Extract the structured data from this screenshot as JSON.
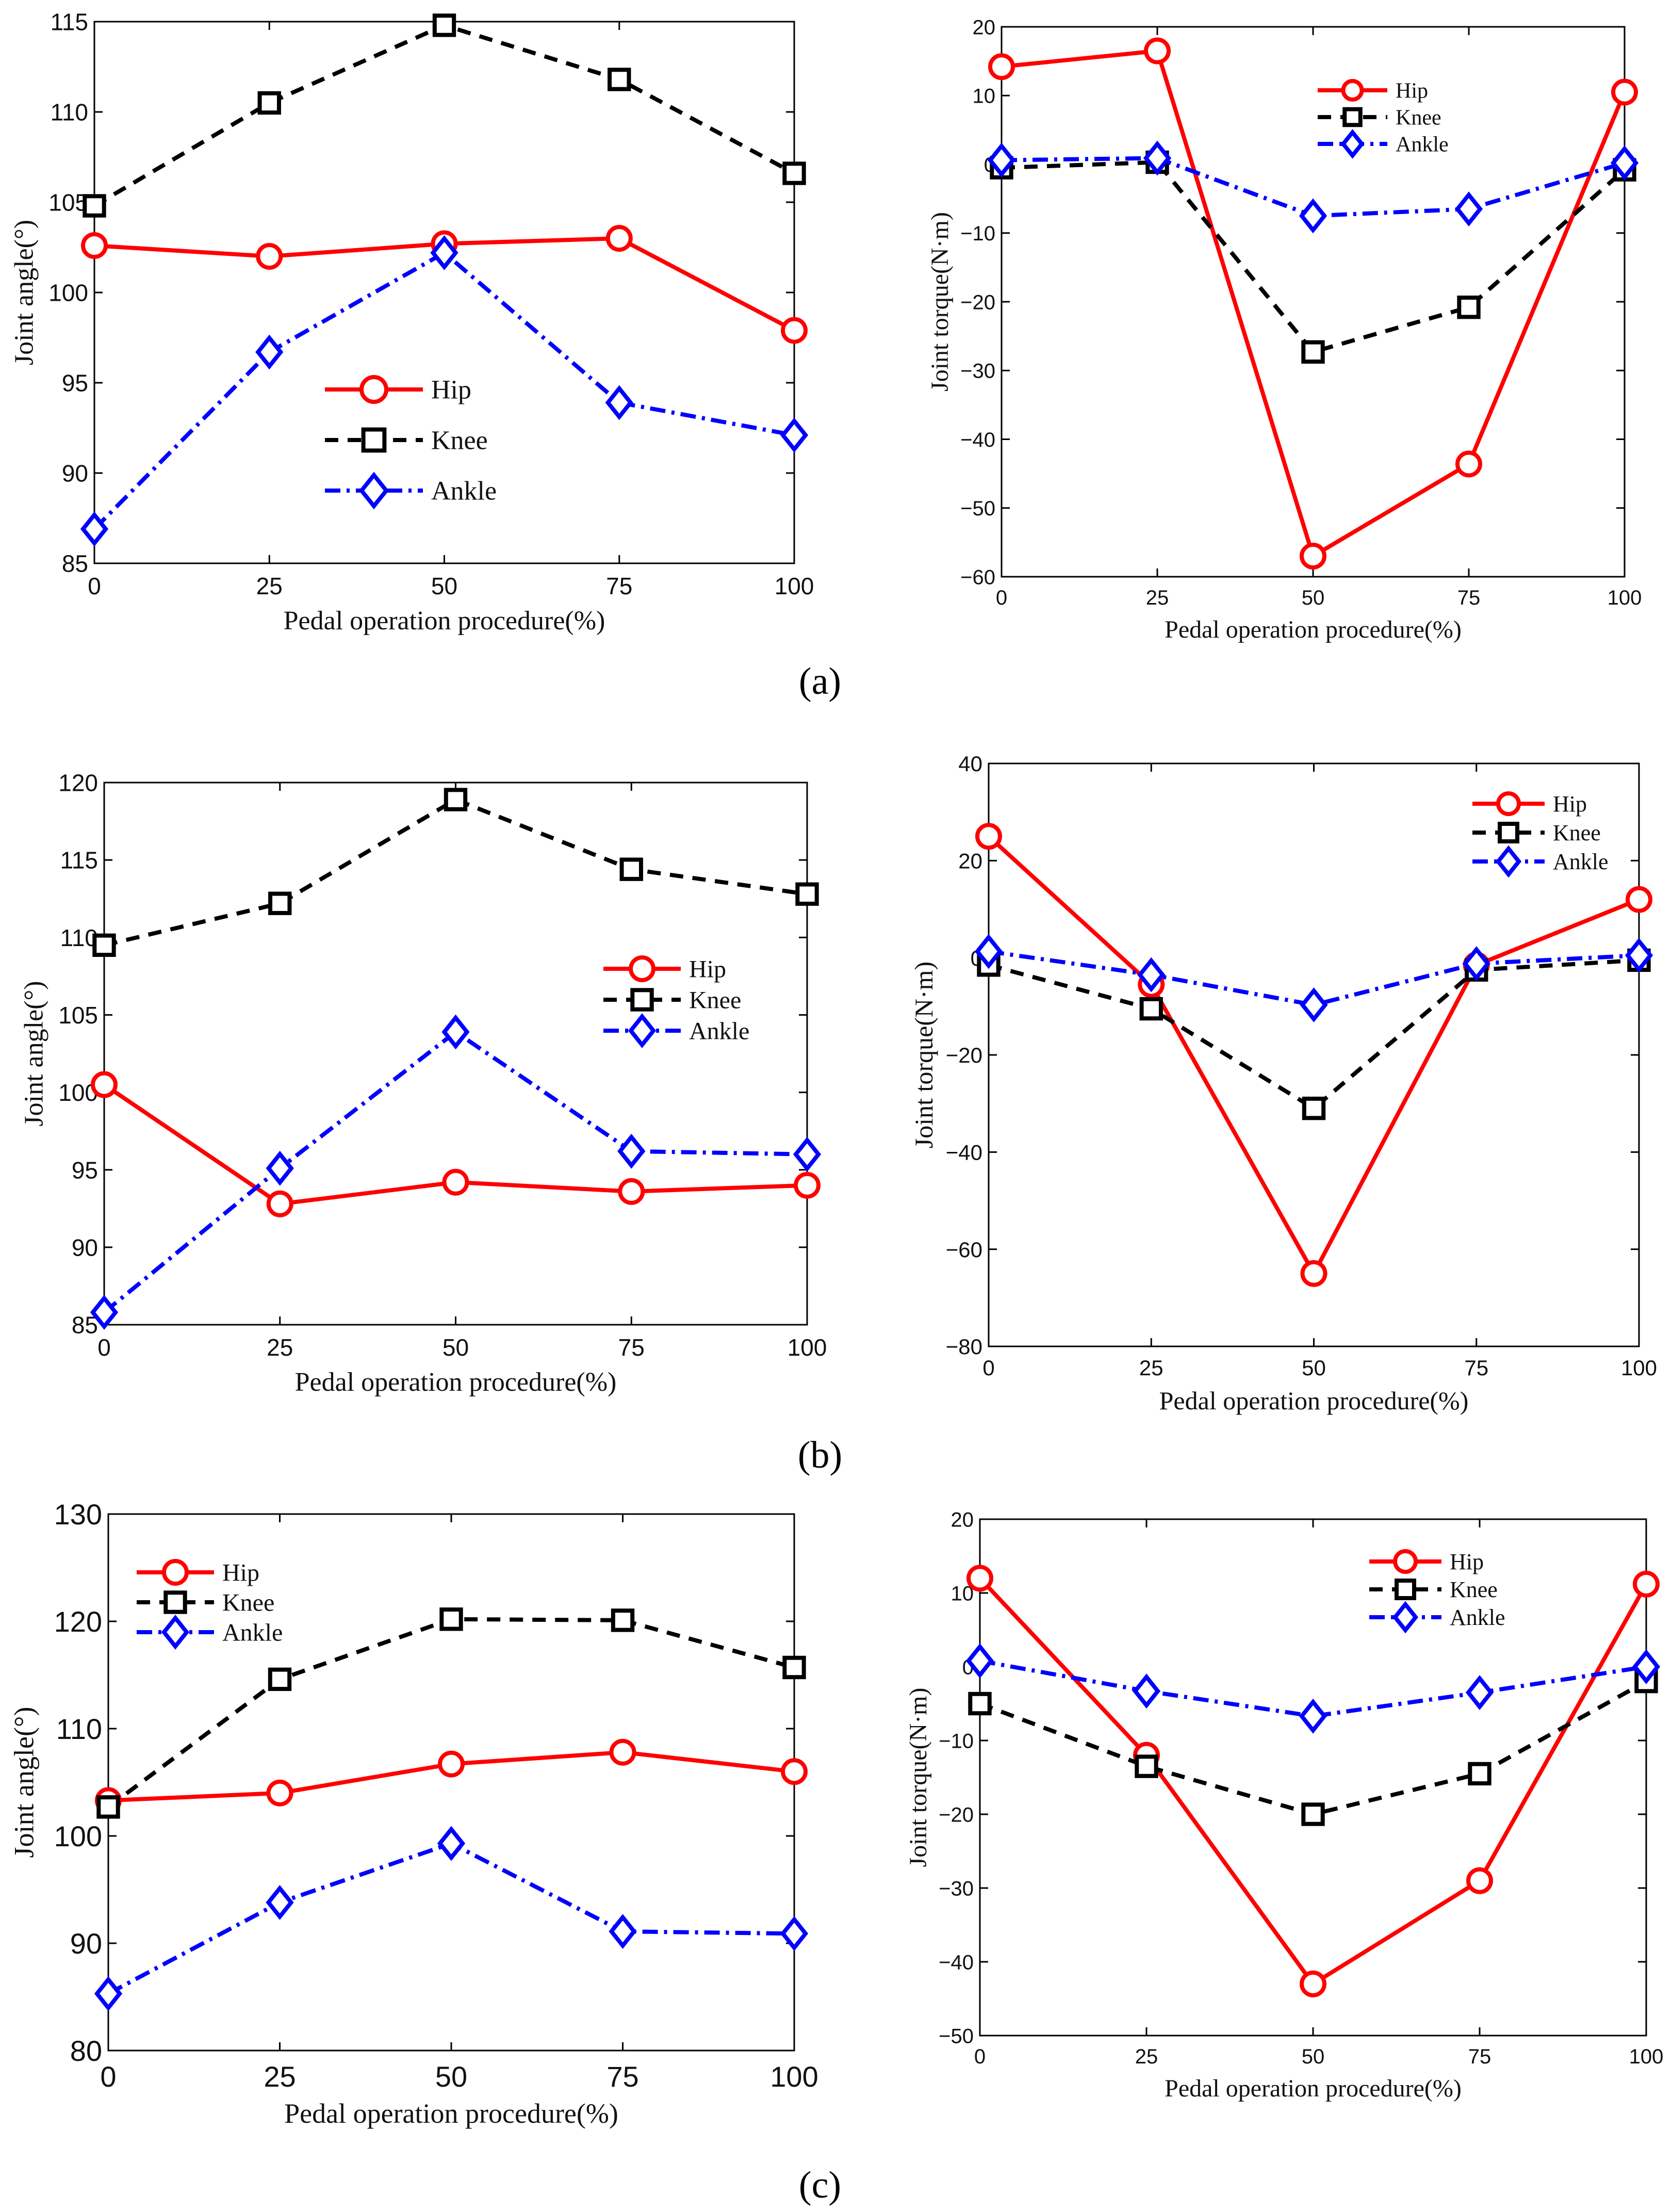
{
  "styles": {
    "hip": {
      "color": "#ff0000",
      "marker": "circle",
      "dash": ""
    },
    "knee": {
      "color": "#000000",
      "marker": "square",
      "dash": "26,18"
    },
    "ankle": {
      "color": "#0000ff",
      "marker": "diamond",
      "dash": "30,12,6,12"
    }
  },
  "captions": {
    "a": "(a)",
    "b": "(b)",
    "c": "(c)"
  },
  "chart_data": [
    {
      "id": "a-angle",
      "row": 0,
      "col": 0,
      "type": "line",
      "x": [
        0,
        25,
        50,
        75,
        100
      ],
      "xlim": [
        0,
        100
      ],
      "xticks": [
        "0",
        "25",
        "50",
        "75",
        "100"
      ],
      "ylim": [
        85,
        115
      ],
      "yticks": [
        "85",
        "90",
        "95",
        "100",
        "105",
        "110",
        "115"
      ],
      "xlabel": "Pedal operation procedure(%)",
      "ylabel": "Joint angle(°)",
      "legend_position": "center",
      "series": [
        {
          "name": "Hip",
          "key": "hip",
          "values": [
            102.6,
            102.0,
            102.7,
            103.0,
            97.9
          ]
        },
        {
          "name": "Knee",
          "key": "knee",
          "values": [
            104.8,
            110.5,
            114.8,
            111.8,
            106.6
          ]
        },
        {
          "name": "Ankle",
          "key": "ankle",
          "values": [
            86.9,
            96.7,
            102.2,
            93.9,
            92.1
          ]
        }
      ]
    },
    {
      "id": "a-torque",
      "row": 0,
      "col": 1,
      "type": "line",
      "x": [
        0,
        25,
        50,
        75,
        100
      ],
      "xlim": [
        0,
        100
      ],
      "xticks": [
        "0",
        "25",
        "50",
        "75",
        "100"
      ],
      "ylim": [
        -60,
        20
      ],
      "yticks": [
        "−60",
        "−50",
        "−40",
        "−30",
        "−20",
        "−10",
        "0",
        "10",
        "20"
      ],
      "xlabel": "Pedal operation procedure(%)",
      "ylabel": "Joint torque(N·m)",
      "legend_position": "top-right",
      "series": [
        {
          "name": "Hip",
          "key": "hip",
          "values": [
            14.2,
            16.5,
            -57.0,
            -43.6,
            10.5
          ]
        },
        {
          "name": "Knee",
          "key": "knee",
          "values": [
            -0.5,
            0.3,
            -27.3,
            -20.8,
            -0.8
          ]
        },
        {
          "name": "Ankle",
          "key": "ankle",
          "values": [
            0.6,
            0.9,
            -7.5,
            -6.5,
            0.2
          ]
        }
      ]
    },
    {
      "id": "b-angle",
      "row": 1,
      "col": 0,
      "type": "line",
      "x": [
        0,
        25,
        50,
        75,
        100
      ],
      "xlim": [
        0,
        100
      ],
      "xticks": [
        "0",
        "25",
        "50",
        "75",
        "100"
      ],
      "ylim": [
        85,
        120
      ],
      "yticks": [
        "85",
        "90",
        "95",
        "100",
        "105",
        "110",
        "115",
        "120"
      ],
      "xlabel": "Pedal operation procedure(%)",
      "ylabel": "Joint angle(°)",
      "legend_position": "right",
      "series": [
        {
          "name": "Hip",
          "key": "hip",
          "values": [
            100.5,
            92.8,
            94.2,
            93.6,
            94.0
          ]
        },
        {
          "name": "Knee",
          "key": "knee",
          "values": [
            109.5,
            112.2,
            118.9,
            114.4,
            112.8
          ]
        },
        {
          "name": "Ankle",
          "key": "ankle",
          "values": [
            85.8,
            95.1,
            103.9,
            96.2,
            96.0
          ]
        }
      ]
    },
    {
      "id": "b-torque",
      "row": 1,
      "col": 1,
      "type": "line",
      "x": [
        0,
        25,
        50,
        75,
        100
      ],
      "xlim": [
        0,
        100
      ],
      "xticks": [
        "0",
        "25",
        "50",
        "75",
        "100"
      ],
      "ylim": [
        -80,
        40
      ],
      "yticks": [
        "−80",
        "−60",
        "−40",
        "−20",
        "0",
        "20",
        "40"
      ],
      "xlabel": "Pedal operation procedure(%)",
      "ylabel": "Joint torque(N·m)",
      "legend_position": "top-right",
      "series": [
        {
          "name": "Hip",
          "key": "hip",
          "values": [
            25.0,
            -5.5,
            -65.0,
            -1.5,
            12.0
          ]
        },
        {
          "name": "Knee",
          "key": "knee",
          "values": [
            -1.5,
            -10.5,
            -31.0,
            -2.5,
            -0.5
          ]
        },
        {
          "name": "Ankle",
          "key": "ankle",
          "values": [
            1.3,
            -3.5,
            -9.7,
            -1.2,
            0.5
          ]
        }
      ]
    },
    {
      "id": "c-angle",
      "row": 2,
      "col": 0,
      "type": "line",
      "x": [
        0,
        25,
        50,
        75,
        100
      ],
      "xlim": [
        0,
        100
      ],
      "xticks": [
        "0",
        "25",
        "50",
        "75",
        "100"
      ],
      "ylim": [
        80,
        130
      ],
      "yticks": [
        "80",
        "90",
        "100",
        "110",
        "120",
        "130"
      ],
      "xlabel": "Pedal operation procedure(%)",
      "ylabel": "Joint angle(°)",
      "legend_position": "top-left",
      "series": [
        {
          "name": "Hip",
          "key": "hip",
          "values": [
            103.3,
            104.0,
            106.7,
            107.8,
            106.0
          ]
        },
        {
          "name": "Knee",
          "key": "knee",
          "values": [
            102.7,
            114.6,
            120.2,
            120.1,
            115.7
          ]
        },
        {
          "name": "Ankle",
          "key": "ankle",
          "values": [
            85.3,
            93.8,
            99.3,
            91.1,
            90.9
          ]
        }
      ]
    },
    {
      "id": "c-torque",
      "row": 2,
      "col": 1,
      "type": "line",
      "x": [
        0,
        25,
        50,
        75,
        100
      ],
      "xlim": [
        0,
        100
      ],
      "xticks": [
        "0",
        "25",
        "50",
        "75",
        "100"
      ],
      "ylim": [
        -50,
        20
      ],
      "yticks": [
        "−50",
        "−40",
        "−30",
        "−20",
        "−10",
        "0",
        "10",
        "20"
      ],
      "xlabel": "Pedal operation procedure(%)",
      "ylabel": "Joint torque(N·m)",
      "legend_position": "top-right",
      "series": [
        {
          "name": "Hip",
          "key": "hip",
          "values": [
            12.0,
            -12.0,
            -43.0,
            -29.0,
            11.2
          ]
        },
        {
          "name": "Knee",
          "key": "knee",
          "values": [
            -5.0,
            -13.5,
            -20.0,
            -14.5,
            -2.0
          ]
        },
        {
          "name": "Ankle",
          "key": "ankle",
          "values": [
            0.8,
            -3.3,
            -6.7,
            -3.5,
            0.0
          ]
        }
      ]
    }
  ]
}
